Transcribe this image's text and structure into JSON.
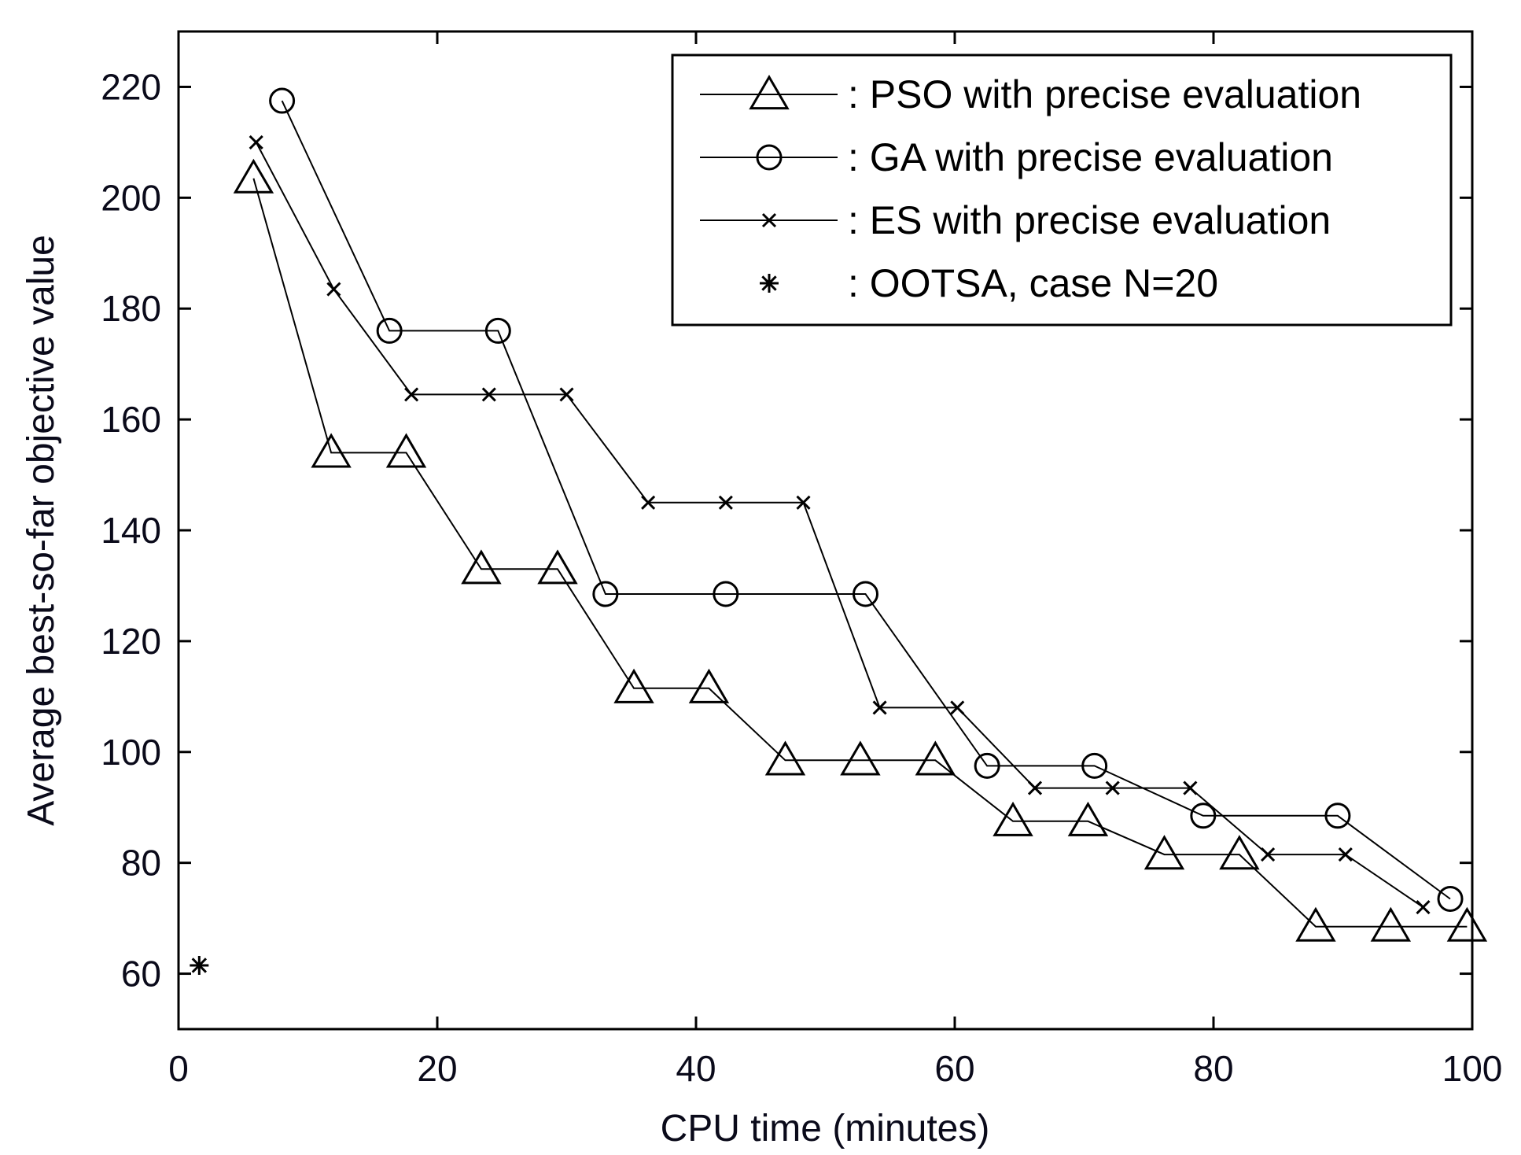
{
  "chart_data": {
    "type": "line",
    "title": "",
    "xlabel": "CPU time (minutes)",
    "ylabel": "Average best-so-far objective value",
    "xlim": [
      0,
      100
    ],
    "ylim": [
      50,
      230
    ],
    "xticks": [
      0,
      20,
      40,
      60,
      80,
      100
    ],
    "yticks": [
      60,
      80,
      100,
      120,
      140,
      160,
      180,
      200,
      220
    ],
    "xtick_labels": [
      "0",
      "20",
      "40",
      "60",
      "80",
      "100"
    ],
    "ytick_labels": [
      "60",
      "80",
      "100",
      "120",
      "140",
      "160",
      "180",
      "200",
      "220"
    ],
    "legend_position": "top-right",
    "grid": false,
    "series": [
      {
        "name": ": PSO with precise evaluation",
        "marker": "triangle",
        "x": [
          5.8,
          11.8,
          17.6,
          23.4,
          29.3,
          35.2,
          41.0,
          46.9,
          52.7,
          58.5,
          64.5,
          70.3,
          76.2,
          82.0,
          87.9,
          93.7,
          99.6
        ],
        "y": [
          203.5,
          154,
          154,
          133,
          133,
          111.5,
          111.5,
          98.5,
          98.5,
          98.5,
          87.5,
          87.5,
          81.5,
          81.5,
          68.5,
          68.5,
          68.5
        ]
      },
      {
        "name": ": GA with precise evaluation",
        "marker": "circle",
        "x": [
          8.0,
          16.3,
          24.7,
          33.0,
          42.3,
          53.1,
          62.5,
          70.8,
          79.2,
          89.6,
          98.3
        ],
        "y": [
          217.5,
          176,
          176,
          128.5,
          128.5,
          128.5,
          97.5,
          97.5,
          88.5,
          88.5,
          73.5
        ]
      },
      {
        "name": ": ES with precise evaluation",
        "marker": "x",
        "x": [
          6.0,
          12.0,
          18.0,
          24.0,
          30.0,
          36.3,
          42.3,
          48.3,
          54.2,
          60.2,
          66.2,
          72.2,
          78.2,
          84.2,
          90.2,
          96.2
        ],
        "y": [
          210,
          183.5,
          164.5,
          164.5,
          164.5,
          145,
          145,
          145,
          108,
          108,
          93.5,
          93.5,
          93.5,
          81.5,
          81.5,
          72
        ]
      },
      {
        "name": ": OOTSA, case N=20",
        "marker": "star",
        "x": [
          1.6
        ],
        "y": [
          61.5
        ]
      }
    ]
  }
}
